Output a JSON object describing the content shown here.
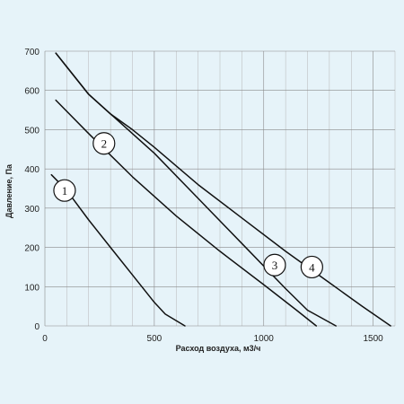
{
  "chart_data": {
    "type": "line",
    "xlabel": "Расход воздуха, м3/ч",
    "ylabel": "Давление, Па",
    "xlim": [
      0,
      1600
    ],
    "ylim": [
      0,
      700
    ],
    "x_ticks": [
      0,
      500,
      1000,
      1500
    ],
    "y_ticks": [
      0,
      100,
      200,
      300,
      400,
      500,
      600,
      700
    ],
    "x_minor_step": 100,
    "grid": true,
    "legend": "none",
    "series": [
      {
        "name": "1",
        "points": [
          [
            30,
            385
          ],
          [
            100,
            345
          ],
          [
            200,
            270
          ],
          [
            300,
            200
          ],
          [
            400,
            130
          ],
          [
            500,
            60
          ],
          [
            550,
            30
          ],
          [
            640,
            0
          ]
        ]
      },
      {
        "name": "2",
        "points": [
          [
            50,
            575
          ],
          [
            200,
            490
          ],
          [
            400,
            380
          ],
          [
            600,
            280
          ],
          [
            800,
            190
          ],
          [
            1000,
            105
          ],
          [
            1150,
            40
          ],
          [
            1240,
            0
          ]
        ]
      },
      {
        "name": "3",
        "points": [
          [
            50,
            695
          ],
          [
            100,
            660
          ],
          [
            200,
            590
          ],
          [
            300,
            540
          ],
          [
            400,
            490
          ],
          [
            500,
            440
          ],
          [
            700,
            325
          ],
          [
            900,
            210
          ],
          [
            1100,
            95
          ],
          [
            1200,
            40
          ],
          [
            1330,
            0
          ]
        ]
      },
      {
        "name": "4",
        "points": [
          [
            50,
            695
          ],
          [
            100,
            660
          ],
          [
            200,
            590
          ],
          [
            300,
            540
          ],
          [
            400,
            500
          ],
          [
            500,
            455
          ],
          [
            700,
            360
          ],
          [
            900,
            275
          ],
          [
            1100,
            190
          ],
          [
            1300,
            110
          ],
          [
            1450,
            50
          ],
          [
            1580,
            0
          ]
        ]
      }
    ],
    "markers": [
      {
        "label": "1",
        "x": 90,
        "y": 345
      },
      {
        "label": "2",
        "x": 270,
        "y": 465
      },
      {
        "label": "3",
        "x": 1050,
        "y": 155
      },
      {
        "label": "4",
        "x": 1220,
        "y": 150
      }
    ]
  }
}
